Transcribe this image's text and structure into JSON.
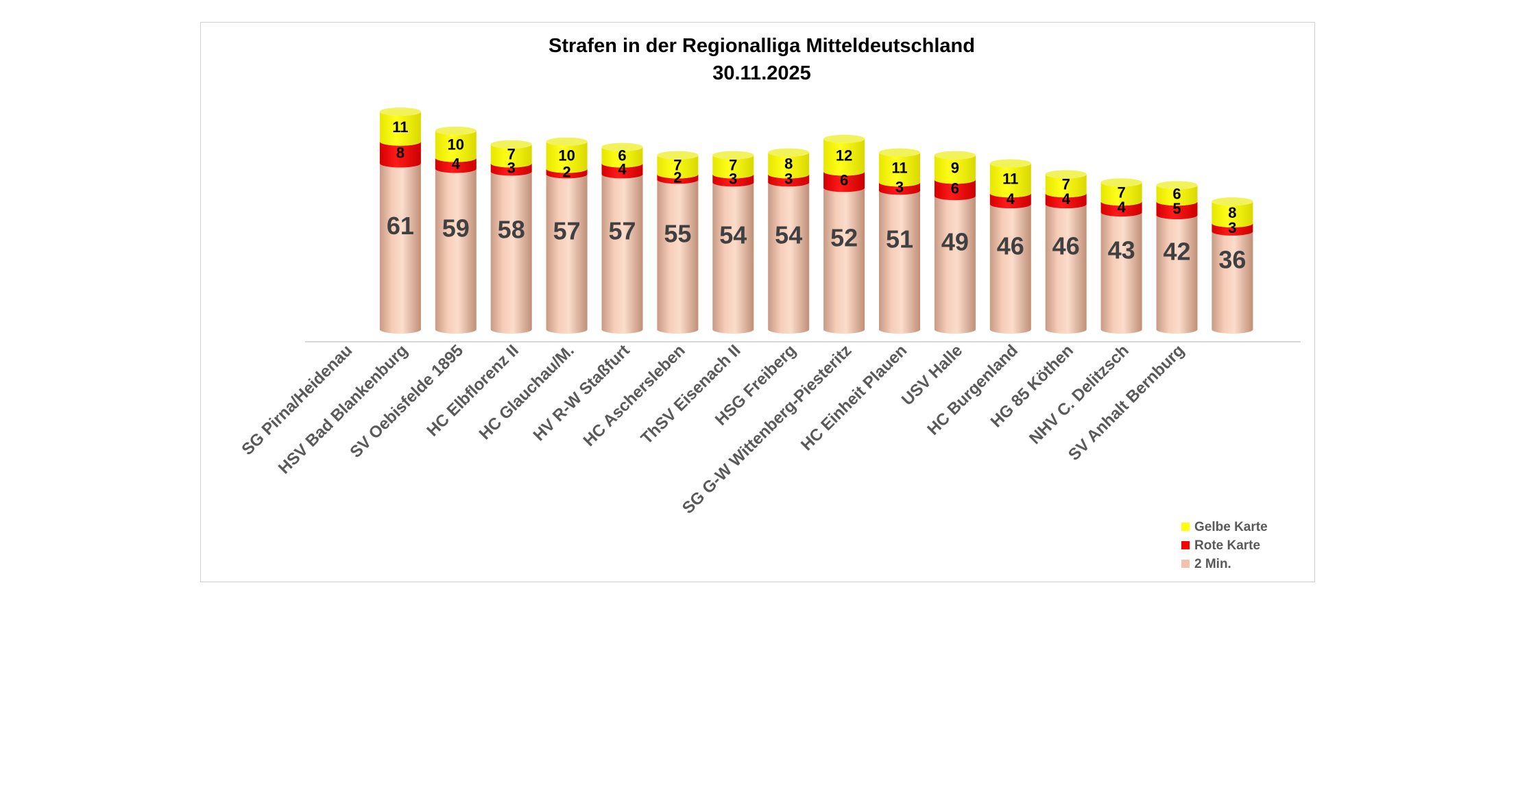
{
  "chart_data": {
    "type": "bar",
    "stacked": true,
    "title": "Strafen in der Regionalliga Mitteldeutschland",
    "subtitle": "30.11.2025",
    "categories": [
      "SG Pirna/Heidenau",
      "HSV Bad Blankenburg",
      "SV Oebisfelde 1895",
      "HC Elbflorenz II",
      "HC Glauchau/M.",
      "HV R-W Staßfurt",
      "HC Aschersleben",
      "ThSV Eisenach II",
      "HSG Freiberg",
      "SG G-W Wittenberg-Piesteritz",
      "HC Einheit Plauen",
      "USV Halle",
      "HC Burgenland",
      "HG 85 Köthen",
      "NHV C. Delitzsch",
      "SV Anhalt Bernburg"
    ],
    "series": [
      {
        "name": "2 Min.",
        "color": "#f4c2aa",
        "values": [
          61,
          59,
          58,
          57,
          57,
          55,
          54,
          54,
          52,
          51,
          49,
          46,
          46,
          43,
          42,
          36
        ]
      },
      {
        "name": "Rote Karte",
        "color": "#ff0000",
        "values": [
          8,
          4,
          3,
          2,
          4,
          2,
          3,
          3,
          6,
          3,
          6,
          4,
          4,
          4,
          5,
          3
        ]
      },
      {
        "name": "Gelbe Karte",
        "color": "#ffff00",
        "values": [
          11,
          10,
          7,
          10,
          6,
          7,
          7,
          8,
          12,
          11,
          9,
          11,
          7,
          7,
          6,
          8
        ]
      }
    ],
    "legend": [
      "Gelbe Karte",
      "Rote Karte",
      "2 Min."
    ],
    "legend_position": "bottom-right",
    "xlabel": "",
    "ylabel": "",
    "ylim": [
      0,
      80
    ],
    "grid": false
  }
}
